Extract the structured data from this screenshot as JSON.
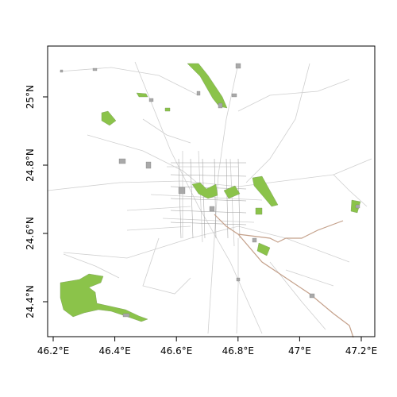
{
  "chart_data": {
    "type": "map",
    "x_axis": {
      "ticks": [
        46.2,
        46.4,
        46.6,
        46.8,
        47.0,
        47.2
      ],
      "tick_labels": [
        "46.2°E",
        "46.4°E",
        "46.6°E",
        "46.8°E",
        "47°E",
        "47.2°E"
      ],
      "range": [
        46.18,
        47.25
      ]
    },
    "y_axis": {
      "ticks": [
        24.4,
        24.6,
        24.8,
        25.0
      ],
      "tick_labels": [
        "24.4°N",
        "24.6°N",
        "24.8°N",
        "25°N"
      ],
      "range": [
        24.3,
        25.15
      ]
    },
    "grid": false,
    "layers": [
      {
        "kind": "green areas",
        "color": "#8bc34a"
      },
      {
        "kind": "grey blocks",
        "color": "#a9a9a9"
      },
      {
        "kind": "roads",
        "color": "#c8c8c8"
      },
      {
        "kind": "railway",
        "color": "#c4a08a"
      }
    ]
  }
}
